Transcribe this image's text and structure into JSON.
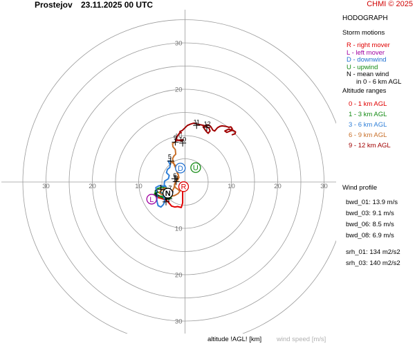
{
  "header": {
    "station": "Prostejov",
    "datetime": "23.11.2025 00 UTC",
    "copyright": "CHMI © 2025"
  },
  "legend": {
    "title": "HODOGRAPH",
    "storm_motions_title": "Storm motions",
    "storm_motions": [
      {
        "text": "R - right mover",
        "color": "#e00000"
      },
      {
        "text": "L - left mover",
        "color": "#a000a0"
      },
      {
        "text": "D - downwind",
        "color": "#1e6fd0"
      },
      {
        "text": "U - upwind",
        "color": "#138a13"
      },
      {
        "text": "N - mean wind",
        "color": "#000000"
      },
      {
        "text": "in 0 - 6 km AGL",
        "color": "#000000"
      }
    ],
    "altitude_title": "Altitude ranges",
    "altitude_ranges": [
      {
        "text": "0 - 1 km AGL",
        "color": "#e00000"
      },
      {
        "text": "1 - 3 km AGL",
        "color": "#138a13"
      },
      {
        "text": "3 - 6 km AGL",
        "color": "#2f7fd8"
      },
      {
        "text": "6 - 9 km AGL",
        "color": "#c8702a"
      },
      {
        "text": "9 - 12 km AGL",
        "color": "#a00000"
      }
    ],
    "wind_profile_title": "Wind profile",
    "wind_profile": [
      "bwd_01: 13.9 m/s",
      "bwd_03: 9.1 m/s",
      "bwd_06: 8.5 m/s",
      "bwd_08: 6.9 m/s",
      "",
      "srh_01: 134 m2/s2",
      "srh_03: 140 m2/s2"
    ]
  },
  "footer": {
    "altitude_label": "altitude !AGL! [km]",
    "speed_label": "wind speed [m/s]"
  },
  "chart_data": {
    "type": "hodograph",
    "units": "m/s",
    "range": 30,
    "ring_step": 5,
    "tick_labels": [
      "10",
      "20",
      "30"
    ],
    "segments": [
      {
        "name": "0 - 1 km AGL",
        "color": "#e00000",
        "points": [
          [
            -0.5,
            -1.5
          ],
          [
            -0.5,
            -3
          ],
          [
            -0.5,
            -4.5
          ],
          [
            -0.8,
            -5.5
          ],
          [
            -1.6,
            -5.3
          ],
          [
            -2.2,
            -5.4
          ],
          [
            -2.9,
            -5.2
          ],
          [
            -3.4,
            -4.6
          ],
          [
            -3.8,
            -4.1
          ],
          [
            -4.3,
            -3.9
          ],
          [
            -4.9,
            -3.6
          ],
          [
            -5.6,
            -3.4
          ],
          [
            -6.3,
            -3.3
          ]
        ]
      },
      {
        "name": "1 - 3 km AGL",
        "color": "#138a13",
        "points": [
          [
            -6.3,
            -3.3
          ],
          [
            -6.7,
            -3.0
          ],
          [
            -6.5,
            -2.4
          ],
          [
            -6.1,
            -2.2
          ],
          [
            -5.2,
            -2.3
          ],
          [
            -4.5,
            -2.7
          ],
          [
            -4.8,
            -3.4
          ],
          [
            -5.1,
            -3.3
          ],
          [
            -5.9,
            -2.8
          ],
          [
            -6.4,
            -2.7
          ],
          [
            -6.4,
            -1.9
          ],
          [
            -5.9,
            -1.4
          ],
          [
            -5.0,
            -1.1
          ],
          [
            -4.0,
            -1.3
          ],
          [
            -3.3,
            -1.9
          ],
          [
            -2.8,
            -2.8
          ],
          [
            -3.0,
            -3.3
          ],
          [
            -3.4,
            -3.7
          ],
          [
            -3.9,
            -3.7
          ],
          [
            -4.6,
            -3.4
          ],
          [
            -5.0,
            -3.1
          ],
          [
            -5.8,
            -3.0
          ],
          [
            -6.2,
            -3.0
          ],
          [
            -6.5,
            -2.6
          ],
          [
            -6.3,
            -2.3
          ],
          [
            -5.7,
            -2.2
          ],
          [
            -5.2,
            -2.3
          ]
        ]
      },
      {
        "name": "3 - 6 km AGL",
        "color": "#2f7fd8",
        "points": [
          [
            -5.2,
            -2.3
          ],
          [
            -4.5,
            -3.3
          ],
          [
            -4.4,
            -4.3
          ],
          [
            -4.7,
            -4.9
          ],
          [
            -5.2,
            -5.4
          ],
          [
            -5.8,
            -5.1
          ],
          [
            -6.0,
            -4.4
          ],
          [
            -6.1,
            -3.7
          ],
          [
            -6.0,
            -3.0
          ],
          [
            -6.2,
            -2.1
          ],
          [
            -6.3,
            -1.2
          ],
          [
            -5.6,
            -0.8
          ],
          [
            -4.6,
            -0.9
          ],
          [
            -4.1,
            -1.0
          ],
          [
            -4.5,
            -0.6
          ],
          [
            -4.4,
            0.2
          ],
          [
            -3.6,
            0.7
          ],
          [
            -3.4,
            1.4
          ],
          [
            -4.0,
            2.0
          ],
          [
            -3.8,
            2.7
          ],
          [
            -3.3,
            3.1
          ],
          [
            -3.2,
            3.7
          ],
          [
            -3.6,
            4.5
          ],
          [
            -3.1,
            4.5
          ]
        ]
      },
      {
        "name": "6 - 9 km AGL",
        "color": "#c8702a",
        "points": [
          [
            -3.1,
            4.5
          ],
          [
            -2.6,
            4.1
          ],
          [
            -2.1,
            3.6
          ],
          [
            -1.8,
            3.1
          ],
          [
            -1.6,
            2.5
          ],
          [
            -1.7,
            2.0
          ],
          [
            -1.5,
            1.6
          ],
          [
            -1.3,
            1.0
          ],
          [
            -1.6,
            0.4
          ],
          [
            -2.1,
            -0.1
          ],
          [
            -2.3,
            -0.6
          ],
          [
            -2.1,
            -1.2
          ],
          [
            -1.6,
            -1.5
          ],
          [
            -1.1,
            -2.0
          ],
          [
            -1.5,
            -2.5
          ],
          [
            -2.2,
            -2.9
          ],
          [
            -3.0,
            -3.1
          ],
          [
            -3.6,
            -3.2
          ],
          [
            -4.0,
            -3.0
          ],
          [
            -4.6,
            -2.8
          ],
          [
            -5.2,
            -2.6
          ],
          [
            -5.6,
            -2.3
          ],
          [
            -5.0,
            -1.7
          ],
          [
            -4.3,
            -1.3
          ],
          [
            -3.8,
            -1.7
          ],
          [
            -3.3,
            -2.1
          ],
          [
            -3.0,
            -2.5
          ],
          [
            -2.4,
            -1.3
          ],
          [
            -2.1,
            -0.2
          ],
          [
            -1.9,
            0.3
          ],
          [
            -1.6,
            0.8
          ],
          [
            -1.4,
            1.4
          ],
          [
            -1.6,
            2.0
          ],
          [
            -1.9,
            2.5
          ],
          [
            -2.0,
            3.0
          ],
          [
            -2.3,
            3.6
          ],
          [
            -2.5,
            4.3
          ],
          [
            -2.7,
            5.0
          ],
          [
            -2.4,
            5.6
          ],
          [
            -2.0,
            6.0
          ],
          [
            -2.1,
            7.0
          ],
          [
            -2.6,
            7.6
          ],
          [
            -2.7,
            8.3
          ],
          [
            -2.1,
            8.6
          ]
        ]
      },
      {
        "name": "9 - 12 km AGL",
        "color": "#a00000",
        "points": [
          [
            -2.1,
            8.6
          ],
          [
            -1.8,
            9.1
          ],
          [
            -0.7,
            8.8
          ],
          [
            -0.4,
            9.1
          ],
          [
            -1.7,
            9.0
          ],
          [
            -1.9,
            9.5
          ],
          [
            -1.5,
            10.1
          ],
          [
            -1.0,
            10.8
          ],
          [
            -0.8,
            10.6
          ],
          [
            -1.1,
            10.9
          ],
          [
            -0.6,
            11.1
          ],
          [
            0.5,
            12.2
          ],
          [
            1.2,
            12.5
          ],
          [
            1.9,
            12.7
          ],
          [
            2.6,
            12.5
          ],
          [
            3.6,
            12.3
          ],
          [
            4.4,
            12.1
          ],
          [
            5.2,
            11.6
          ],
          [
            5.4,
            11.0
          ],
          [
            5.0,
            10.5
          ],
          [
            4.6,
            10.9
          ],
          [
            3.9,
            11.9
          ],
          [
            4.4,
            12.1
          ],
          [
            4.8,
            12.3
          ],
          [
            5.3,
            12.2
          ],
          [
            5.6,
            11.9
          ],
          [
            6.0,
            11.2
          ],
          [
            6.4,
            11.0
          ],
          [
            7.0,
            11.7
          ],
          [
            7.5,
            12.0
          ],
          [
            8.0,
            12.1
          ],
          [
            8.8,
            12.0
          ],
          [
            9.5,
            11.8
          ],
          [
            9.9,
            11.9
          ],
          [
            10.2,
            11.5
          ],
          [
            9.9,
            11.2
          ],
          [
            9.4,
            11.4
          ],
          [
            8.6,
            11.0
          ],
          [
            9.0,
            10.7
          ],
          [
            9.5,
            10.9
          ],
          [
            10.3,
            11.2
          ],
          [
            10.9,
            10.8
          ],
          [
            10.8,
            10.4
          ],
          [
            10.2,
            10.2
          ]
        ]
      }
    ],
    "height_labels": [
      {
        "text": "1",
        "u": -5.2,
        "v": -1.6
      },
      {
        "text": "2",
        "u": -6.2,
        "v": -2.7
      },
      {
        "text": "3",
        "u": -3.5,
        "v": -3.4
      },
      {
        "text": "4",
        "u": -4.1,
        "v": -4.0
      },
      {
        "text": "5",
        "u": -3.3,
        "v": 5.0
      },
      {
        "text": "6",
        "u": -2.2,
        "v": 1.0
      },
      {
        "text": "7",
        "u": -3.2,
        "v": -1.8
      },
      {
        "text": "8",
        "u": -1.9,
        "v": 0.4
      },
      {
        "text": "9",
        "u": -2.1,
        "v": 9.1
      },
      {
        "text": "10",
        "u": -0.5,
        "v": 8.7
      },
      {
        "text": "11",
        "u": 2.5,
        "v": 12.5
      },
      {
        "text": "12",
        "u": 4.8,
        "v": 12.1
      }
    ],
    "crosses": [
      [
        -5.2,
        -1.6
      ],
      [
        -6.2,
        -3.0
      ],
      [
        -3.5,
        -3.6
      ],
      [
        -4.1,
        -4.3
      ],
      [
        -3.1,
        4.5
      ],
      [
        -2.2,
        0.7
      ],
      [
        -3.2,
        -2.1
      ],
      [
        -1.9,
        0.1
      ],
      [
        -2.1,
        8.6
      ],
      [
        -0.5,
        8.4
      ],
      [
        2.5,
        12.2
      ],
      [
        4.7,
        11.8
      ]
    ],
    "storm_motion_markers": [
      {
        "letter": "R",
        "u": -0.3,
        "v": -1.0,
        "color": "#e00000"
      },
      {
        "letter": "L",
        "u": -7.2,
        "v": -3.7,
        "color": "#a000a0"
      },
      {
        "letter": "D",
        "u": -1.0,
        "v": 3.0,
        "color": "#1e6fd0"
      },
      {
        "letter": "U",
        "u": 2.3,
        "v": 3.1,
        "color": "#138a13"
      },
      {
        "letter": "N",
        "u": -3.7,
        "v": -2.4,
        "color": "#000000"
      }
    ]
  }
}
